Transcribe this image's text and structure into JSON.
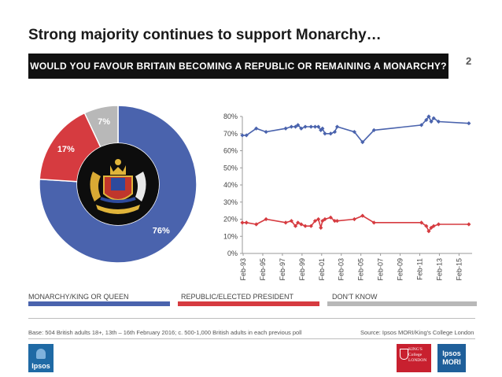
{
  "slide": {
    "title": "Strong majority continues to support Monarchy…",
    "question": "WOULD YOU FAVOUR BRITAIN BECOMING A REPUBLIC OR REMAINING A MONARCHY?",
    "page_number": "2"
  },
  "legend": {
    "monarchy": "MONARCHY/KING OR QUEEN",
    "republic": "REPUBLIC/ELECTED PRESIDENT",
    "dont_know": "DON'T KNOW"
  },
  "colors": {
    "monarchy": "#4a63ad",
    "republic": "#d63b40",
    "dont_know": "#b8b8b8"
  },
  "footer": {
    "base": "Base: 504 British adults 18+, 13th – 16th February 2016; c. 500-1,000 British adults in each previous poll",
    "source": "Source: Ipsos MORI/King's College London"
  },
  "logos": {
    "ipsos": "Ipsos",
    "kings_line1": "KING'S",
    "kings_line2": "College",
    "kings_line3": "LONDON",
    "mori_line1": "Ipsos",
    "mori_line2": "MORI",
    "crest_icon": "royal-coat-of-arms-icon"
  },
  "chart_data": [
    {
      "type": "pie",
      "labels": [
        "Monarchy/King or Queen",
        "Republic/Elected President",
        "Don't know"
      ],
      "values": [
        76,
        17,
        7
      ],
      "value_labels": [
        "76%",
        "17%",
        "7%"
      ]
    },
    {
      "type": "line",
      "x_tick_labels": [
        "Feb-93",
        "Feb-95",
        "Feb-97",
        "Feb-99",
        "Feb-01",
        "Feb-03",
        "Feb-05",
        "Feb-07",
        "Feb-09",
        "Feb-11",
        "Feb-13",
        "Feb-15"
      ],
      "y_tick_labels": [
        "0%",
        "10%",
        "20%",
        "30%",
        "40%",
        "50%",
        "60%",
        "70%",
        "80%"
      ],
      "ylim": [
        0,
        80
      ],
      "xlim": [
        "1993-01",
        "2016-06"
      ],
      "grid": false,
      "series": [
        {
          "key": "monarchy",
          "x": [
            "1993-01",
            "1993-06",
            "1994-06",
            "1995-06",
            "1997-06",
            "1998-01",
            "1998-06",
            "1998-09",
            "1999-01",
            "1999-06",
            "2000-01",
            "2000-06",
            "2000-10",
            "2001-01",
            "2001-03",
            "2001-06",
            "2002-01",
            "2002-06",
            "2002-09",
            "2004-06",
            "2005-04",
            "2006-06",
            "2011-04",
            "2011-10",
            "2012-01",
            "2012-04",
            "2012-07",
            "2013-01",
            "2016-02"
          ],
          "y": [
            69,
            69,
            73,
            71,
            73,
            74,
            74,
            75,
            73,
            74,
            74,
            74,
            74,
            72,
            73,
            70,
            70,
            71,
            74,
            71,
            65,
            72,
            75,
            78,
            80,
            77,
            79,
            77,
            76
          ]
        },
        {
          "key": "republic",
          "x": [
            "1993-01",
            "1993-06",
            "1994-06",
            "1995-06",
            "1997-06",
            "1998-01",
            "1998-06",
            "1998-09",
            "1999-01",
            "1999-06",
            "2000-01",
            "2000-06",
            "2000-10",
            "2001-01",
            "2001-03",
            "2001-06",
            "2002-01",
            "2002-06",
            "2002-09",
            "2004-06",
            "2005-04",
            "2006-06",
            "2011-04",
            "2011-10",
            "2012-01",
            "2012-04",
            "2012-07",
            "2013-01",
            "2016-02"
          ],
          "y": [
            18,
            18,
            17,
            20,
            18,
            19,
            16,
            18,
            17,
            16,
            16,
            19,
            20,
            15,
            19,
            20,
            21,
            19,
            19,
            20,
            22,
            18,
            18,
            16,
            13,
            15,
            16,
            17,
            17
          ]
        }
      ]
    }
  ]
}
